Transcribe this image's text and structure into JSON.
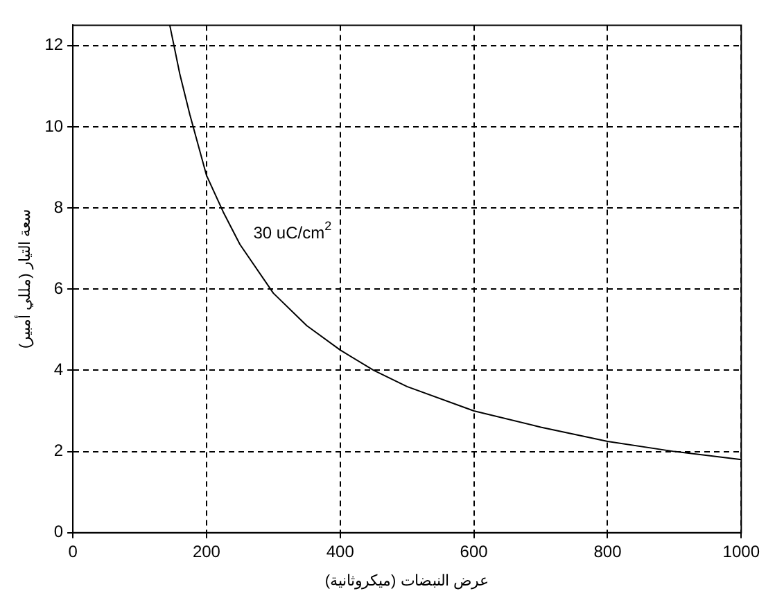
{
  "chart_data": {
    "type": "line",
    "xlabel": "عرض النبضات (ميكروثانية)",
    "ylabel": "سعة التيار (مللي أمبير)",
    "x": [
      145,
      160,
      175,
      200,
      225,
      250,
      300,
      350,
      400,
      450,
      500,
      600,
      700,
      800,
      900,
      1000
    ],
    "series": [
      {
        "color": "#000000",
        "values": [
          12.5,
          11.3,
          10.3,
          8.8,
          7.9,
          7.1,
          5.9,
          5.1,
          4.5,
          4.0,
          3.6,
          3.0,
          2.6,
          2.25,
          2.0,
          1.8
        ]
      }
    ],
    "xlim": [
      0,
      1000
    ],
    "xticks": [
      0,
      200,
      400,
      600,
      800,
      1000
    ],
    "ylim": [
      0,
      12.5
    ],
    "yticks": [
      0,
      2,
      4,
      6,
      8,
      10,
      12
    ],
    "grid": true,
    "marker": "none",
    "line_style": "solid",
    "legend": false,
    "annotations": [
      "30 uC/cm$^{2}$"
    ]
  }
}
